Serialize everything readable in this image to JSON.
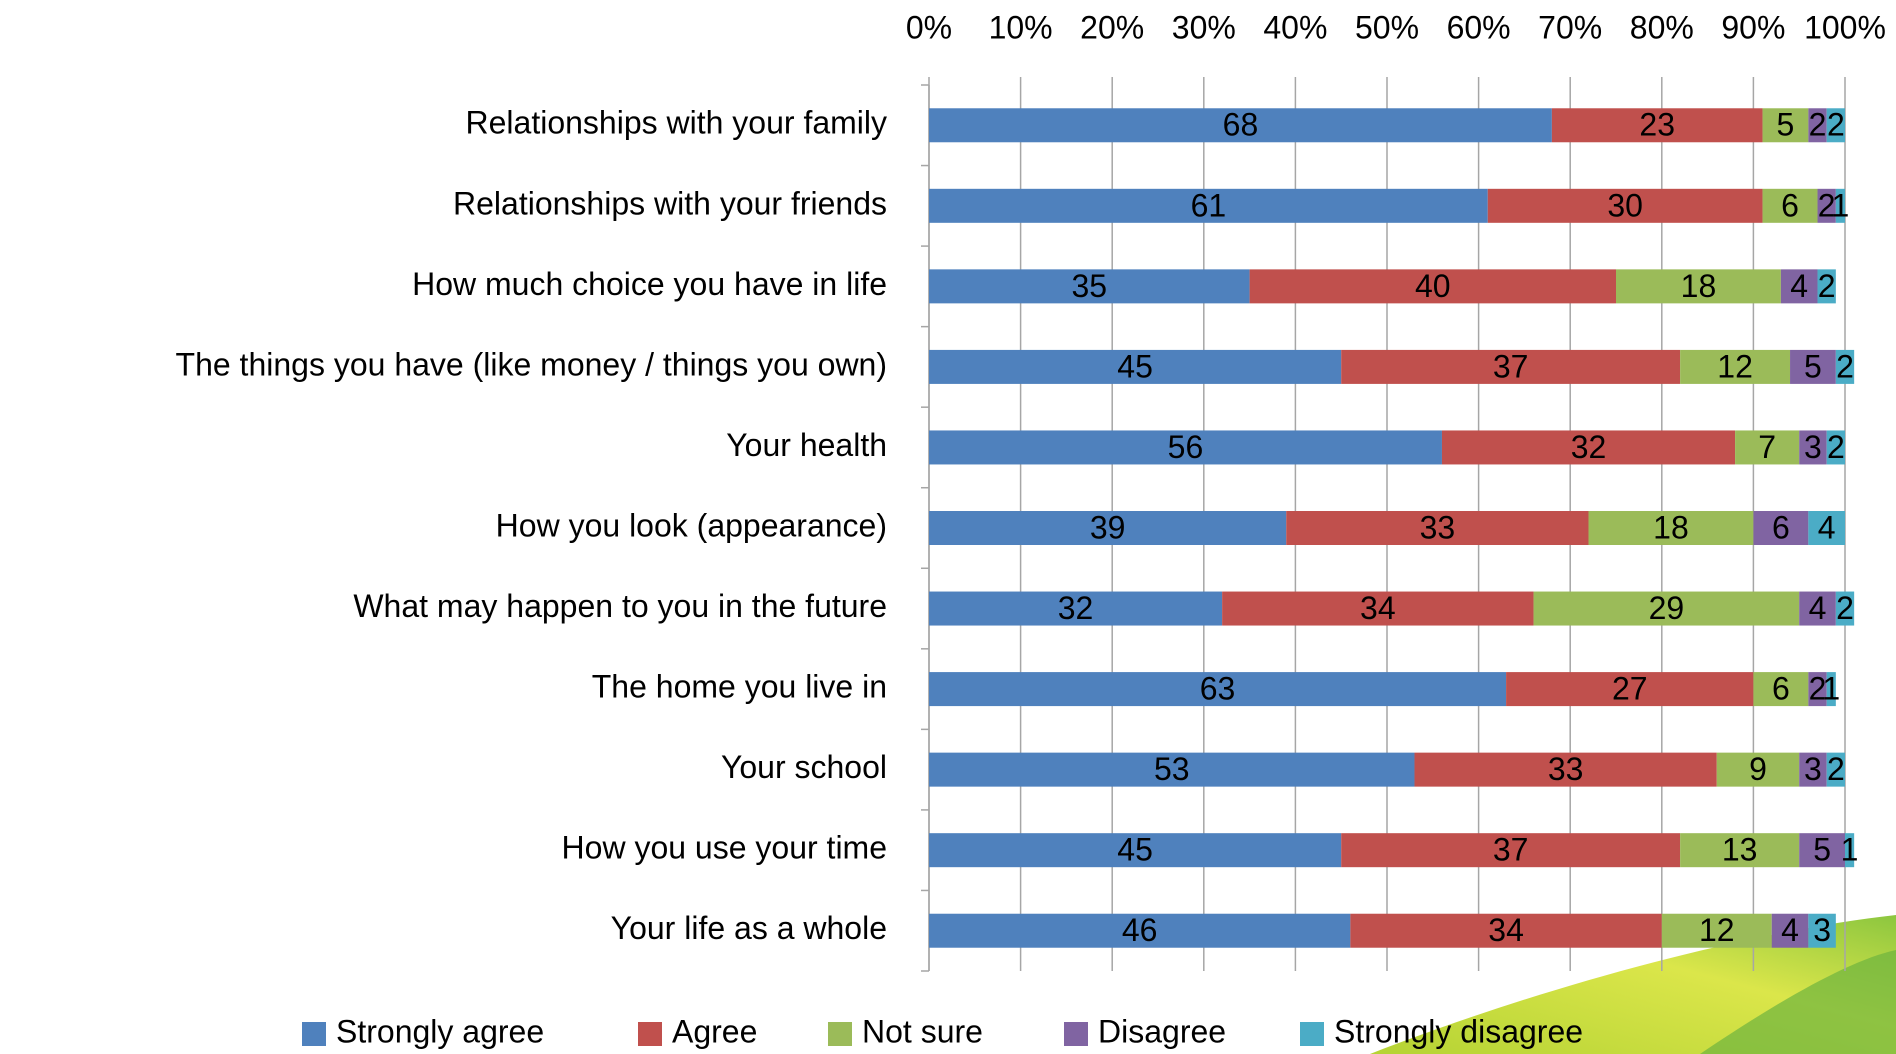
{
  "chart_data": {
    "type": "stacked-bar-horizontal",
    "categories": [
      "Relationships with your family",
      "Relationships with your friends",
      "How much choice you have in life",
      "The things you have (like money / things you own)",
      "Your health",
      "How you look (appearance)",
      "What may happen to you in the future",
      "The home you live in",
      "Your school",
      "How you use your time",
      "Your life as a whole"
    ],
    "series": [
      {
        "name": "Strongly agree",
        "color": "#4f81bd",
        "values": [
          68,
          61,
          35,
          45,
          56,
          39,
          32,
          63,
          53,
          45,
          46
        ]
      },
      {
        "name": "Agree",
        "color": "#c0504d",
        "values": [
          23,
          30,
          40,
          37,
          32,
          33,
          34,
          27,
          33,
          37,
          34
        ]
      },
      {
        "name": "Not sure",
        "color": "#9bbb59",
        "values": [
          5,
          6,
          18,
          12,
          7,
          18,
          29,
          6,
          9,
          13,
          12
        ]
      },
      {
        "name": "Disagree",
        "color": "#8064a2",
        "values": [
          2,
          2,
          4,
          5,
          3,
          6,
          4,
          2,
          3,
          5,
          4
        ]
      },
      {
        "name": "Strongly disagree",
        "color": "#4bacc6",
        "values": [
          2,
          1,
          2,
          2,
          2,
          4,
          2,
          1,
          2,
          1,
          3
        ]
      }
    ],
    "xlim": [
      0,
      100
    ],
    "xticks": [
      {
        "value": 0,
        "label": "0%"
      },
      {
        "value": 10,
        "label": "10%"
      },
      {
        "value": 20,
        "label": "20%"
      },
      {
        "value": 30,
        "label": "30%"
      },
      {
        "value": 40,
        "label": "40%"
      },
      {
        "value": 50,
        "label": "50%"
      },
      {
        "value": 60,
        "label": "60%"
      },
      {
        "value": 70,
        "label": "70%"
      },
      {
        "value": 80,
        "label": "80%"
      },
      {
        "value": 90,
        "label": "90%"
      },
      {
        "value": 100,
        "label": "100%"
      }
    ],
    "grid": true,
    "legend": "bottom"
  }
}
